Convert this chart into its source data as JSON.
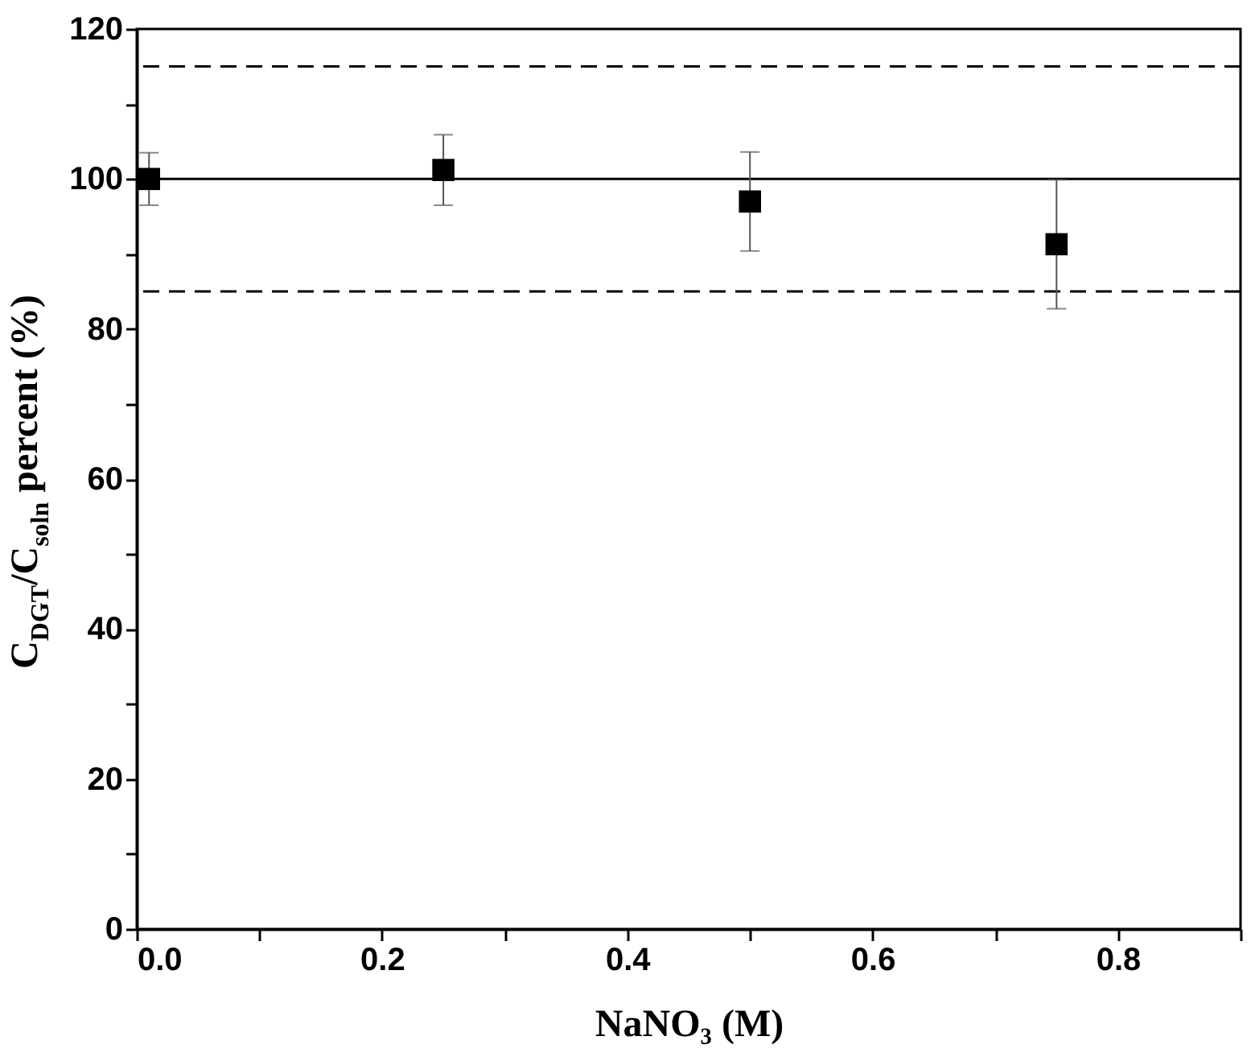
{
  "chart_data": {
    "type": "scatter",
    "xlabel": "NaNO₃ (M)",
    "ylabel": "C$_{DGT}$/C$_{soln}$ percent (%)",
    "x": [
      0.01,
      0.25,
      0.5,
      0.75
    ],
    "series": [
      {
        "color": "#000000",
        "values": [
          100.0,
          101.2,
          97.0,
          91.3
        ],
        "errors": [
          3.5,
          4.7,
          6.6,
          8.6
        ]
      }
    ],
    "marker": "square",
    "xlim": [
      0,
      0.9
    ],
    "xticks": [
      {
        "value": 0,
        "label": "0.0"
      },
      {
        "value": 0.1,
        "label": null
      },
      0.2,
      {
        "value": 0.3,
        "label": null
      },
      0.4,
      {
        "value": 0.5,
        "label": null
      },
      0.6,
      {
        "value": 0.7,
        "label": null
      },
      0.8,
      {
        "value": 0.9,
        "label": null
      }
    ],
    "ylim": [
      0,
      120
    ],
    "yticks": [
      0,
      {
        "value": 10,
        "label": null
      },
      20,
      {
        "value": 30,
        "label": null
      },
      40,
      {
        "value": 50,
        "label": null
      },
      60,
      {
        "value": 70,
        "label": null
      },
      80,
      {
        "value": 90,
        "label": null
      },
      100,
      {
        "value": 110,
        "label": null
      },
      120
    ],
    "ref_lines": [
      {
        "axis": "y",
        "value": 100,
        "line_style": "solid",
        "color": "#000000"
      },
      {
        "axis": "y",
        "value": 115,
        "line_style": "dashed",
        "color": "#000000"
      },
      {
        "axis": "y",
        "value": 85,
        "line_style": "dashed",
        "color": "#000000"
      }
    ],
    "grid": false
  }
}
